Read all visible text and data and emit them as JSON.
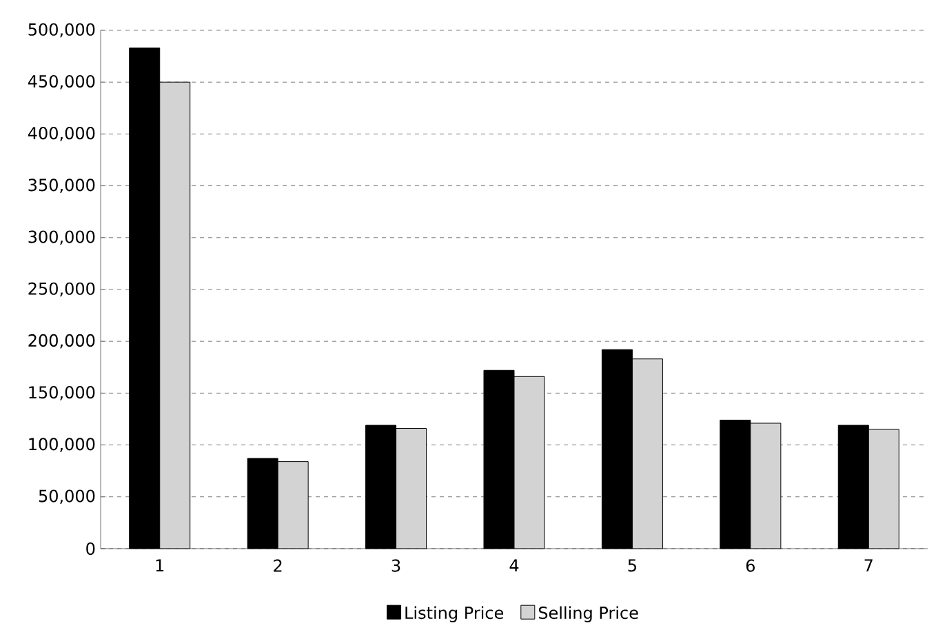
{
  "chart_data": {
    "type": "bar",
    "categories": [
      "1",
      "2",
      "3",
      "4",
      "5",
      "6",
      "7"
    ],
    "series": [
      {
        "name": "Listing Price",
        "color": "#000000",
        "values": [
          483000,
          87000,
          119000,
          172000,
          192000,
          124000,
          119000
        ]
      },
      {
        "name": "Selling Price",
        "color": "#d3d3d3",
        "values": [
          450000,
          84000,
          116000,
          166000,
          183000,
          121000,
          115000
        ]
      }
    ],
    "ylim": [
      0,
      500000
    ],
    "yticks": [
      {
        "value": 0,
        "label": "0"
      },
      {
        "value": 50000,
        "label": "50,000"
      },
      {
        "value": 100000,
        "label": "100,000"
      },
      {
        "value": 150000,
        "label": "150,000"
      },
      {
        "value": 200000,
        "label": "200,000"
      },
      {
        "value": 250000,
        "label": "250,000"
      },
      {
        "value": 300000,
        "label": "300,000"
      },
      {
        "value": 350000,
        "label": "350,000"
      },
      {
        "value": 400000,
        "label": "400,000"
      },
      {
        "value": 450000,
        "label": "450,000"
      },
      {
        "value": 500000,
        "label": "500,000"
      }
    ],
    "grid": "y",
    "legend": "bottom"
  }
}
